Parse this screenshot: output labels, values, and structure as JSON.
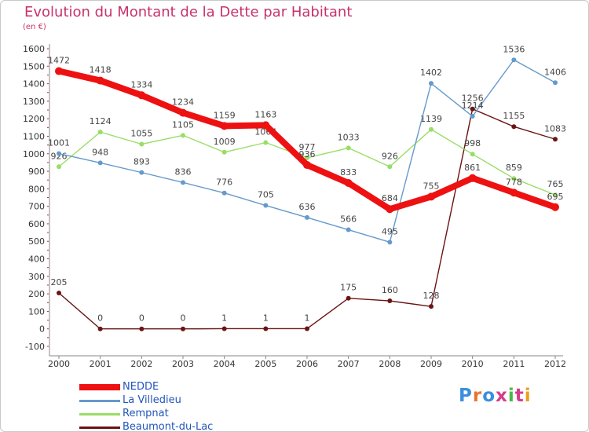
{
  "chart_data": {
    "type": "line",
    "title": "Evolution du Montant de la Dette par Habitant",
    "subtitle": "(en €)",
    "x": [
      "2000",
      "2001",
      "2002",
      "2003",
      "2004",
      "2005",
      "2006",
      "2007",
      "2008",
      "2009",
      "2010",
      "2011",
      "2012"
    ],
    "ylim": [
      -100,
      1600
    ],
    "y_ticks": [
      -100,
      0,
      100,
      200,
      300,
      400,
      500,
      600,
      700,
      800,
      900,
      1000,
      1100,
      1200,
      1300,
      1400,
      1500,
      1600
    ],
    "grid": false,
    "legend_position": "bottom-left",
    "series": [
      {
        "name": "Beaumont-du-Lac",
        "color": "#6a1414",
        "values": [
          205,
          0,
          0,
          0,
          1,
          1,
          1,
          175,
          160,
          128,
          1256,
          1155,
          1083
        ]
      },
      {
        "name": "Rempnat",
        "color": "#99dd66",
        "values": [
          926,
          1124,
          1055,
          1105,
          1009,
          1064,
          977,
          1033,
          926,
          1139,
          998,
          859,
          765
        ]
      },
      {
        "name": "La Villedieu",
        "color": "#6699cc",
        "values": [
          1001,
          948,
          893,
          836,
          776,
          705,
          636,
          566,
          495,
          1402,
          1214,
          1536,
          1406
        ]
      },
      {
        "name": "NEDDE",
        "color": "#ee1111",
        "values": [
          1472,
          1418,
          1334,
          1234,
          1159,
          1163,
          936,
          833,
          684,
          755,
          861,
          778,
          695
        ]
      }
    ]
  },
  "legend": {
    "items": [
      {
        "label": "NEDDE",
        "color": "#ee1111"
      },
      {
        "label": "La Villedieu",
        "color": "#6699cc"
      },
      {
        "label": "Rempnat",
        "color": "#99dd66"
      },
      {
        "label": "Beaumont-du-Lac",
        "color": "#6a1414"
      }
    ]
  },
  "brand": {
    "text": "Proxiti",
    "colors": [
      "#3b8ede",
      "#e8742a",
      "#3b8ede",
      "#d63b8a",
      "#48b848",
      "#d63b8a",
      "#e8a020"
    ]
  }
}
